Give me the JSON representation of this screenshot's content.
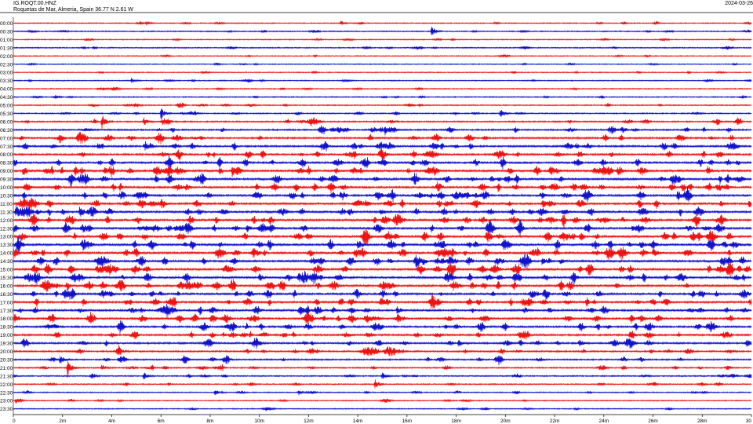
{
  "header": {
    "station": "IG.ROQT.00.HNZ",
    "location": "Roquetas de Mar, Almeria, Spain  36.77 N 2.61 W",
    "date": "2024-03-26"
  },
  "chart_data": {
    "type": "line",
    "title": "IG.ROQT.00.HNZ",
    "subtitle": "Roquetas de Mar, Almeria, Spain  36.77 N 2.61 W",
    "date": "2024-03-26",
    "row_labels": [
      "00:00",
      "00:30",
      "01:00",
      "01:30",
      "02:00",
      "02:30",
      "03:00",
      "03:30",
      "04:00",
      "04:30",
      "05:00",
      "05:30",
      "06:00",
      "06:30",
      "07:00",
      "07:30",
      "08:00",
      "08:30",
      "09:00",
      "09:30",
      "10:00",
      "10:30",
      "11:00",
      "11:30",
      "12:00",
      "12:30",
      "13:00",
      "13:30",
      "14:00",
      "14:30",
      "15:00",
      "15:30",
      "16:00",
      "16:30",
      "17:00",
      "17:30",
      "18:00",
      "18:30",
      "19:00",
      "19:30",
      "20:00",
      "20:30",
      "21:00",
      "21:30",
      "22:00",
      "22:30",
      "23:00",
      "23:30"
    ],
    "x_ticks": [
      "0",
      "2m",
      "4m",
      "6m",
      "8m",
      "10m",
      "12m",
      "14m",
      "16m",
      "18m",
      "20m",
      "22m",
      "24m",
      "26m",
      "28m",
      "30"
    ],
    "xlim": [
      0,
      30
    ],
    "x_unit": "minutes",
    "row_colors": [
      "#ee1111",
      "#1111cc"
    ],
    "noise_level": [
      0.7,
      0.8,
      0.7,
      0.8,
      0.6,
      0.6,
      0.6,
      0.7,
      0.7,
      0.8,
      0.9,
      1.0,
      1.3,
      1.6,
      1.8,
      1.9,
      2.0,
      2.1,
      2.3,
      2.3,
      2.2,
      2.2,
      2.1,
      2.2,
      2.3,
      2.3,
      2.4,
      2.4,
      2.4,
      2.4,
      2.4,
      2.3,
      2.3,
      2.2,
      2.2,
      2.1,
      2.1,
      2.0,
      1.9,
      1.8,
      1.6,
      1.4,
      1.2,
      1.0,
      0.9,
      0.8,
      0.7,
      0.7
    ],
    "events": [
      {
        "row": 0,
        "t": 5.4,
        "amp": 3
      },
      {
        "row": 0,
        "t": 13.3,
        "amp": 3
      },
      {
        "row": 1,
        "t": 17.0,
        "amp": 7
      },
      {
        "row": 7,
        "t": 4.8,
        "amp": 3
      },
      {
        "row": 11,
        "t": 6.0,
        "amp": 8
      },
      {
        "row": 11,
        "t": 19.8,
        "amp": 7
      },
      {
        "row": 12,
        "t": 3.6,
        "amp": 10
      },
      {
        "row": 12,
        "t": 5.3,
        "amp": 5
      },
      {
        "row": 13,
        "t": 15.1,
        "amp": 7
      },
      {
        "row": 18,
        "t": 0.4,
        "amp": 6
      },
      {
        "row": 18,
        "t": 2.5,
        "amp": 7
      },
      {
        "row": 18,
        "t": 8.9,
        "amp": 8
      },
      {
        "row": 18,
        "t": 28.2,
        "amp": 7
      },
      {
        "row": 19,
        "t": 2.3,
        "amp": 5
      },
      {
        "row": 21,
        "t": 27.0,
        "amp": 8
      },
      {
        "row": 22,
        "t": 29.9,
        "amp": 5
      },
      {
        "row": 23,
        "t": 0.1,
        "amp": 7
      },
      {
        "row": 23,
        "t": 2.7,
        "amp": 6
      },
      {
        "row": 25,
        "t": 9.5,
        "amp": 5
      },
      {
        "row": 27,
        "t": 14.0,
        "amp": 7
      },
      {
        "row": 28,
        "t": 26.0,
        "amp": 6
      },
      {
        "row": 29,
        "t": 21.5,
        "amp": 6
      },
      {
        "row": 31,
        "t": 10.0,
        "amp": 5
      },
      {
        "row": 32,
        "t": 18.6,
        "amp": 6
      },
      {
        "row": 34,
        "t": 17.0,
        "amp": 5
      },
      {
        "row": 35,
        "t": 15.6,
        "amp": 5
      },
      {
        "row": 37,
        "t": 19.0,
        "amp": 5
      },
      {
        "row": 39,
        "t": 18.1,
        "amp": 5
      },
      {
        "row": 39,
        "t": 23.0,
        "amp": 5
      },
      {
        "row": 40,
        "t": 4.3,
        "amp": 5
      },
      {
        "row": 41,
        "t": 1.9,
        "amp": 6
      },
      {
        "row": 42,
        "t": 2.2,
        "amp": 13
      },
      {
        "row": 42,
        "t": 3.6,
        "amp": 5
      },
      {
        "row": 43,
        "t": 5.3,
        "amp": 5
      },
      {
        "row": 43,
        "t": 15.0,
        "amp": 5
      },
      {
        "row": 44,
        "t": 14.7,
        "amp": 7
      },
      {
        "row": 45,
        "t": 8.2,
        "amp": 4
      },
      {
        "row": 45,
        "t": 11.6,
        "amp": 4
      },
      {
        "row": 46,
        "t": 0.1,
        "amp": 4
      }
    ]
  }
}
